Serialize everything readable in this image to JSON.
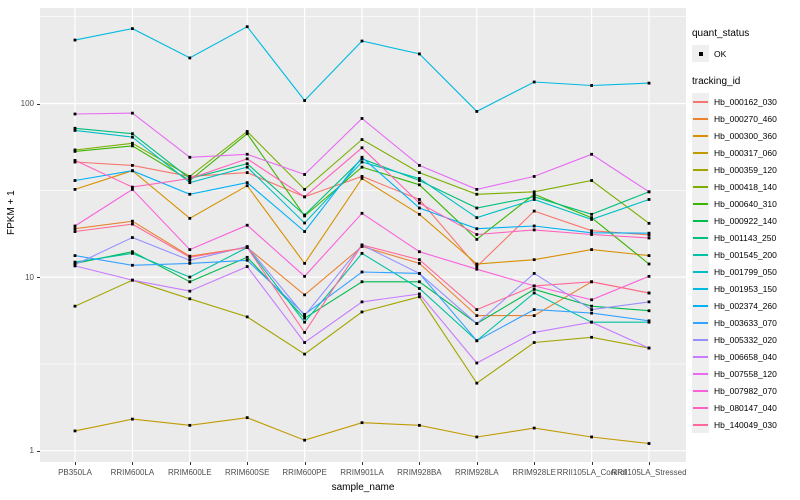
{
  "figure": {
    "background_color": "#FFFFFF",
    "panel_background_color": "#EBEBEB",
    "gridline_color": "#FFFFFF",
    "point_color": "#000000"
  },
  "y_axis": {
    "title": "FPKM + 1",
    "tick_labels": [
      "100",
      "10",
      "1"
    ]
  },
  "x_axis": {
    "title": "sample_name"
  },
  "legend": {
    "quant_status_title": "quant_status",
    "quant_status_ok_label": "OK",
    "tracking_id_title": "tracking_id"
  },
  "chart_data": {
    "type": "line",
    "title": "",
    "xlabel": "sample_name",
    "ylabel": "FPKM + 1",
    "yscale": "log10",
    "ylim": [
      1,
      330
    ],
    "y_major_ticks": [
      1,
      10,
      100
    ],
    "y_minor_ticks": [
      3.162,
      31.62,
      316.2
    ],
    "grid": true,
    "legend_position": "right",
    "marker": "small black point (quant_status = OK)",
    "categories": [
      "PB350LA",
      "RRIM600LA",
      "RRIM600LE",
      "RRIM600SE",
      "RRIM600PE",
      "RRIM901LA",
      "RRIM928BA",
      "RRIM928LA",
      "RRIM928LE",
      "RRII105LA_Control",
      "RRII105LA_Stressed"
    ],
    "values_note": "FPKM+1, log scale; values estimated from pixel positions",
    "series": [
      {
        "name": "Hb_000162_030",
        "color": "#F8766D",
        "values": [
          46,
          44,
          38,
          40,
          29,
          38,
          28,
          11.5,
          24,
          18.5,
          17.5
        ]
      },
      {
        "name": "Hb_000270_460",
        "color": "#EA8331",
        "values": [
          19,
          21,
          13.2,
          14.8,
          7.9,
          15,
          12,
          6.0,
          6.0,
          9.4,
          8.1
        ]
      },
      {
        "name": "Hb_000300_360",
        "color": "#D89000",
        "values": [
          32,
          41,
          21.8,
          33.6,
          12.0,
          37,
          23,
          11.9,
          12.6,
          14.4,
          13.3
        ]
      },
      {
        "name": "Hb_000317_060",
        "color": "#C09B00",
        "values": [
          1.3,
          1.52,
          1.4,
          1.55,
          1.15,
          1.45,
          1.4,
          1.2,
          1.35,
          1.2,
          1.1
        ]
      },
      {
        "name": "Hb_000359_120",
        "color": "#A3A500",
        "values": [
          6.8,
          9.6,
          7.5,
          5.9,
          3.6,
          6.3,
          7.7,
          2.45,
          4.2,
          4.5,
          3.9
        ]
      },
      {
        "name": "Hb_000418_140",
        "color": "#7CAE00",
        "values": [
          54,
          59,
          38,
          69,
          32,
          62,
          40,
          30,
          31,
          36,
          20.4
        ]
      },
      {
        "name": "Hb_000640_310",
        "color": "#39B600",
        "values": [
          53,
          57,
          36,
          67,
          22.5,
          43,
          34,
          16.5,
          30,
          22,
          11.9
        ]
      },
      {
        "name": "Hb_000922_140",
        "color": "#00BB4E",
        "values": [
          12,
          14,
          9.4,
          13,
          5.8,
          9.4,
          9.4,
          5.4,
          8.5,
          6.8,
          6.4
        ]
      },
      {
        "name": "Hb_001143_250",
        "color": "#00BF7D",
        "values": [
          72,
          67,
          37,
          45,
          22.8,
          48,
          36,
          25,
          29,
          23,
          31
        ]
      },
      {
        "name": "Hb_001545_200",
        "color": "#00C1A3",
        "values": [
          12.2,
          13.7,
          10,
          14.8,
          5.5,
          13.7,
          8.6,
          4.3,
          8.1,
          5.5,
          5.5
        ]
      },
      {
        "name": "Hb_001799_050",
        "color": "#00BFC4",
        "values": [
          70,
          64,
          35,
          43,
          20.5,
          46,
          37,
          22,
          28,
          21.5,
          28
        ]
      },
      {
        "name": "Hb_001953_150",
        "color": "#00BAE0",
        "values": [
          232,
          270,
          183,
          277,
          104,
          229,
          193,
          90,
          133,
          127,
          131
        ]
      },
      {
        "name": "Hb_002374_260",
        "color": "#00B0F6",
        "values": [
          36,
          41,
          30,
          35,
          18.3,
          49,
          25,
          19,
          19.7,
          18,
          17.9
        ]
      },
      {
        "name": "Hb_003633_070",
        "color": "#35A2FF",
        "values": [
          13.3,
          11.7,
          12,
          12.5,
          6.1,
          10.7,
          10.5,
          4.3,
          6.5,
          6.2,
          5.6
        ]
      },
      {
        "name": "Hb_005332_020",
        "color": "#9590FF",
        "values": [
          11.8,
          16.9,
          12.5,
          15,
          6.0,
          15.3,
          10.5,
          5.4,
          10.5,
          6.5,
          7.2
        ]
      },
      {
        "name": "Hb_006658_040",
        "color": "#C77CFF",
        "values": [
          11.6,
          9.6,
          8.3,
          11.5,
          4.2,
          7.2,
          8.0,
          3.2,
          4.8,
          5.5,
          3.9
        ]
      },
      {
        "name": "Hb_007558_120",
        "color": "#E76BF3",
        "values": [
          87,
          88,
          49,
          51,
          39,
          82,
          44,
          32,
          38,
          51,
          31
        ]
      },
      {
        "name": "Hb_007982_070",
        "color": "#FA62DB",
        "values": [
          19.7,
          32,
          14.4,
          19.9,
          10.1,
          23.3,
          14.0,
          11.1,
          8.9,
          7.4,
          10.1
        ]
      },
      {
        "name": "Hb_080147_040",
        "color": "#FF62BC",
        "values": [
          47,
          33,
          37,
          48,
          29,
          55.6,
          26.7,
          17.6,
          18.7,
          17.6,
          16.8
        ]
      },
      {
        "name": "Hb_140049_030",
        "color": "#FF6A98",
        "values": [
          18.3,
          20.2,
          13,
          14.8,
          4.8,
          15.3,
          12.6,
          6.5,
          8.9,
          9.4,
          8.1
        ]
      }
    ]
  }
}
